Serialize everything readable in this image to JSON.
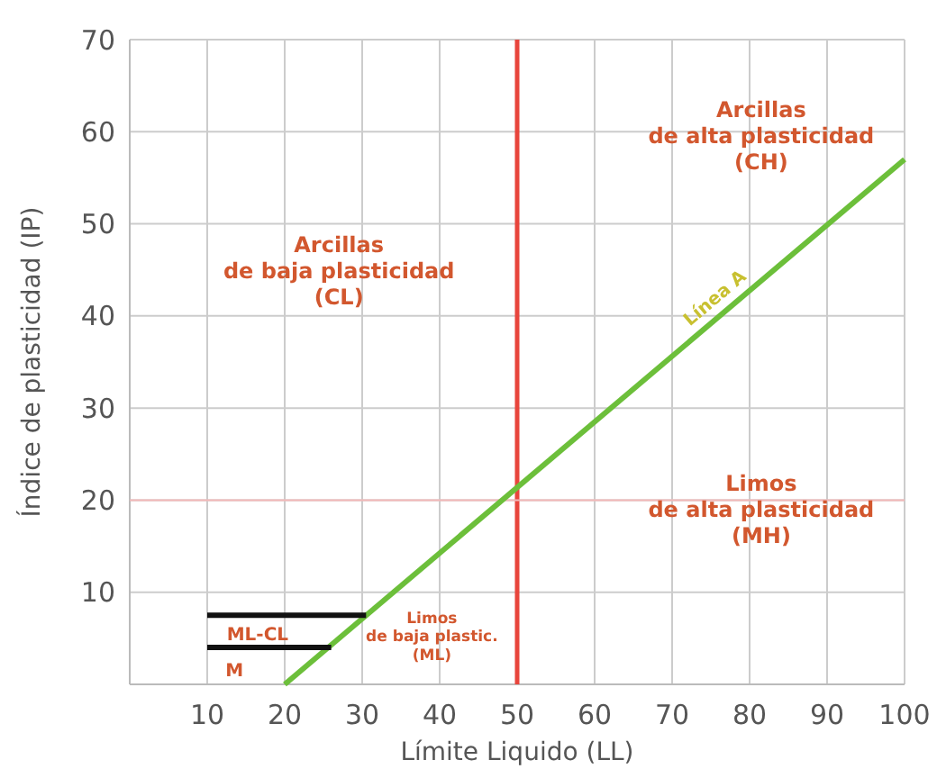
{
  "chart_data": {
    "type": "line",
    "xlabel": "Límite Liquido (LL)",
    "ylabel": "Índice de plasticidad (IP)",
    "xlim": [
      0,
      100
    ],
    "ylim": [
      0,
      70
    ],
    "xticks": [
      10,
      20,
      30,
      40,
      50,
      60,
      70,
      80,
      90,
      100
    ],
    "yticks": [
      10,
      20,
      30,
      40,
      50,
      60,
      70
    ],
    "grid": true,
    "marker": "none",
    "line_style": "solid",
    "series": [
      {
        "name": "Línea A",
        "color": "#6cbf3a",
        "x": [
          20,
          100
        ],
        "values": [
          0,
          57
        ]
      },
      {
        "color": "#111111",
        "x": [
          10,
          30.5
        ],
        "values": [
          7.5,
          7.5
        ]
      },
      {
        "color": "#111111",
        "x": [
          10,
          26
        ],
        "values": [
          4,
          4
        ]
      }
    ],
    "ref_lines": [
      {
        "axis": "x",
        "value": 50,
        "color": "#e8453c"
      },
      {
        "axis": "y",
        "value": 20,
        "color": "#f2b8b8"
      }
    ],
    "annotations": [
      "Arcillas\nde alta plasticidad\n(CH)",
      "Arcillas\nde baja plasticidad\n(CL)",
      "Limos\nde alta plasticidad\n(MH)",
      "Limos\nde baja plastic.\n(ML)",
      "ML-CL",
      "M"
    ]
  }
}
